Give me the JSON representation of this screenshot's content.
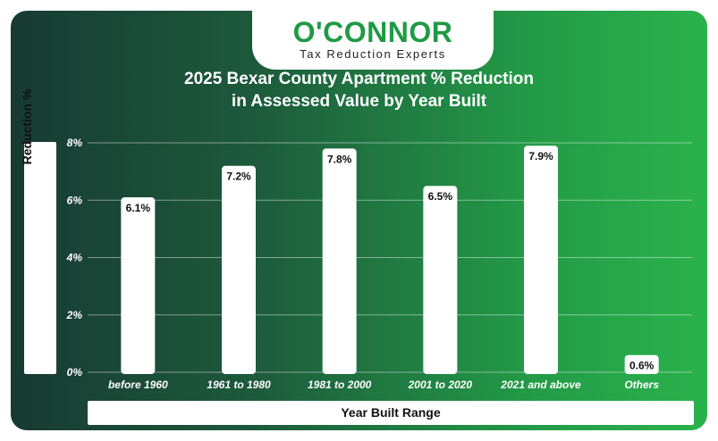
{
  "brand": {
    "name": "O'CONNOR",
    "tagline": "Tax Reduction Experts",
    "color": "#1f9a45"
  },
  "chart_data": {
    "type": "bar",
    "title_line1": "2025 Bexar County Apartment % Reduction",
    "title_line2": "in Assessed Value by Year Built",
    "xlabel": "Year Built Range",
    "ylabel": "Reduction %",
    "categories": [
      "before 1960",
      "1961 to 1980",
      "1981 to 2000",
      "2001 to 2020",
      "2021 and above",
      "Others"
    ],
    "values": [
      6.1,
      7.2,
      7.8,
      6.5,
      7.9,
      0.6
    ],
    "value_labels": [
      "6.1%",
      "7.2%",
      "7.8%",
      "6.5%",
      "7.9%",
      "0.6%"
    ],
    "y_ticks": [
      0,
      2,
      4,
      6,
      8
    ],
    "y_tick_labels": [
      "0%",
      "2%",
      "4%",
      "6%",
      "8%"
    ],
    "ylim": [
      0,
      8
    ],
    "grid": true,
    "bar_color": "#ffffff",
    "background_gradient": [
      "#173a33",
      "#2bb24c"
    ]
  }
}
